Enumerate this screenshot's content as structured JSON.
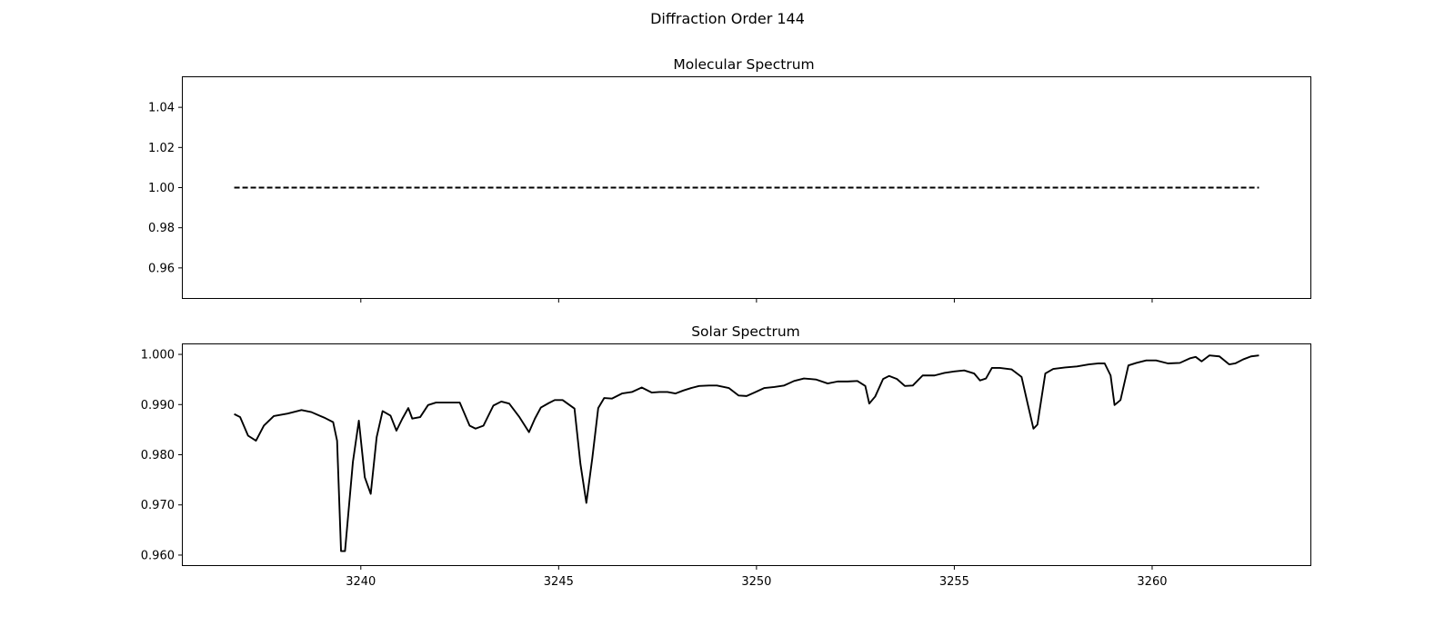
{
  "figure": {
    "suptitle": "Diffraction Order 144"
  },
  "chart_data": [
    {
      "type": "line",
      "title": "Molecular Spectrum",
      "xlabel": "",
      "ylabel": "",
      "xlim": [
        3235.5,
        3264
      ],
      "ylim": [
        0.945,
        1.055
      ],
      "yticks": [
        0.96,
        0.98,
        1.0,
        1.02,
        1.04
      ],
      "ytick_labels": [
        "0.96",
        "0.98",
        "1.00",
        "1.02",
        "1.04"
      ],
      "xticks": [
        3240,
        3245,
        3250,
        3255,
        3260
      ],
      "xtick_labels_shown": false,
      "grid": false,
      "series": [
        {
          "style": "dashed",
          "color": "#000000",
          "x": [
            3236.8,
            3262.7
          ],
          "y": [
            1.0,
            1.0
          ]
        }
      ]
    },
    {
      "type": "line",
      "title": "Solar Spectrum",
      "xlabel": "",
      "ylabel": "",
      "xlim": [
        3235.5,
        3264
      ],
      "ylim": [
        0.958,
        1.002
      ],
      "yticks": [
        0.96,
        0.97,
        0.98,
        0.99,
        1.0
      ],
      "ytick_labels": [
        "0.960",
        "0.970",
        "0.980",
        "0.990",
        "1.000"
      ],
      "xticks": [
        3240,
        3245,
        3250,
        3255,
        3260
      ],
      "xtick_labels": [
        "3240",
        "3245",
        "3250",
        "3255",
        "3260"
      ],
      "grid": false,
      "series": [
        {
          "style": "solid",
          "color": "#000000",
          "x": [
            3236.8,
            3236.95,
            3237.15,
            3237.35,
            3237.55,
            3237.8,
            3238.15,
            3238.5,
            3238.75,
            3238.95,
            3239.1,
            3239.3,
            3239.4,
            3239.5,
            3239.6,
            3239.8,
            3239.95,
            3240.1,
            3240.25,
            3240.4,
            3240.55,
            3240.75,
            3240.9,
            3241.05,
            3241.2,
            3241.3,
            3241.5,
            3241.7,
            3241.9,
            3242.2,
            3242.5,
            3242.75,
            3242.9,
            3243.1,
            3243.35,
            3243.55,
            3243.75,
            3244.0,
            3244.25,
            3244.4,
            3244.55,
            3244.75,
            3244.9,
            3245.1,
            3245.4,
            3245.55,
            3245.7,
            3245.85,
            3246.0,
            3246.15,
            3246.35,
            3246.6,
            3246.85,
            3247.1,
            3247.35,
            3247.55,
            3247.75,
            3247.95,
            3248.15,
            3248.35,
            3248.55,
            3248.8,
            3249.0,
            3249.3,
            3249.55,
            3249.75,
            3249.95,
            3250.2,
            3250.45,
            3250.7,
            3250.95,
            3251.2,
            3251.5,
            3251.8,
            3252.05,
            3252.3,
            3252.55,
            3252.75,
            3252.85,
            3253.0,
            3253.2,
            3253.35,
            3253.55,
            3253.75,
            3253.95,
            3254.2,
            3254.5,
            3254.75,
            3255.0,
            3255.25,
            3255.5,
            3255.65,
            3255.8,
            3255.95,
            3256.15,
            3256.45,
            3256.7,
            3256.85,
            3257.0,
            3257.1,
            3257.3,
            3257.5,
            3257.8,
            3258.1,
            3258.4,
            3258.65,
            3258.8,
            3258.95,
            3259.05,
            3259.2,
            3259.4,
            3259.6,
            3259.85,
            3260.1,
            3260.4,
            3260.7,
            3260.95,
            3261.1,
            3261.25,
            3261.45,
            3261.7,
            3261.95,
            3262.1,
            3262.3,
            3262.5,
            3262.7
          ],
          "y": [
            0.9881,
            0.9875,
            0.9838,
            0.9828,
            0.9858,
            0.9877,
            0.9882,
            0.9889,
            0.9885,
            0.9878,
            0.9873,
            0.9865,
            0.9828,
            0.9608,
            0.9608,
            0.9786,
            0.9868,
            0.9755,
            0.9722,
            0.9835,
            0.9887,
            0.9878,
            0.9848,
            0.9872,
            0.9893,
            0.9872,
            0.9875,
            0.9899,
            0.9904,
            0.9904,
            0.9904,
            0.9858,
            0.9852,
            0.9858,
            0.9898,
            0.9906,
            0.9902,
            0.9876,
            0.9845,
            0.9872,
            0.9894,
            0.9903,
            0.9909,
            0.9909,
            0.9892,
            0.9782,
            0.9704,
            0.9793,
            0.9893,
            0.9913,
            0.9912,
            0.9922,
            0.9925,
            0.9934,
            0.9924,
            0.9925,
            0.9925,
            0.9922,
            0.9928,
            0.9933,
            0.9937,
            0.9938,
            0.9938,
            0.9933,
            0.9918,
            0.9917,
            0.9924,
            0.9933,
            0.9935,
            0.9938,
            0.9947,
            0.9952,
            0.995,
            0.9942,
            0.9946,
            0.9946,
            0.9947,
            0.9937,
            0.9902,
            0.9916,
            0.9951,
            0.9957,
            0.9951,
            0.9937,
            0.9938,
            0.9958,
            0.9958,
            0.9963,
            0.9966,
            0.9968,
            0.9962,
            0.9948,
            0.9952,
            0.9973,
            0.9973,
            0.997,
            0.9955,
            0.9903,
            0.9852,
            0.986,
            0.9962,
            0.9971,
            0.9974,
            0.9976,
            0.998,
            0.9982,
            0.9982,
            0.9958,
            0.9899,
            0.9909,
            0.9978,
            0.9983,
            0.9988,
            0.9988,
            0.9982,
            0.9983,
            0.9992,
            0.9995,
            0.9986,
            0.9998,
            0.9996,
            0.998,
            0.9982,
            0.999,
            0.9996,
            0.9998
          ]
        }
      ]
    }
  ]
}
